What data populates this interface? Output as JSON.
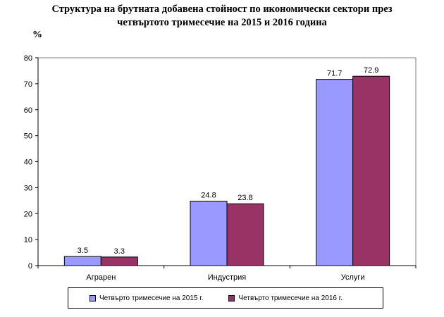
{
  "title": "Структура на брутната добавена стойност по икономически сектори през четвъртото тримесечие на 2015 и 2016 година",
  "title_line1": "Структура на брутната добавена стойност по икономически сектори през",
  "title_line2": "четвъртото тримесечие на 2015 и 2016 година",
  "unit_label": "%",
  "chart_data": {
    "type": "bar",
    "title": "Структура на брутната добавена стойност по икономически сектори през четвъртото тримесечие на 2015 и 2016 година",
    "ylabel": "%",
    "xlabel": "",
    "categories": [
      "Аграрен",
      "Индустрия",
      "Услуги"
    ],
    "series": [
      {
        "name": "Четвърто тримесечие на 2015 г.",
        "values": [
          3.5,
          24.8,
          71.7
        ],
        "color": "#9999ff"
      },
      {
        "name": "Четвърто тримесечие на 2016 г.",
        "values": [
          3.3,
          23.8,
          72.9
        ],
        "color": "#993366"
      }
    ],
    "ylim": [
      0,
      80
    ],
    "yticks": [
      0,
      10,
      20,
      30,
      40,
      50,
      60,
      70,
      80
    ],
    "grid": false,
    "data_labels": true,
    "legend_position": "bottom"
  }
}
